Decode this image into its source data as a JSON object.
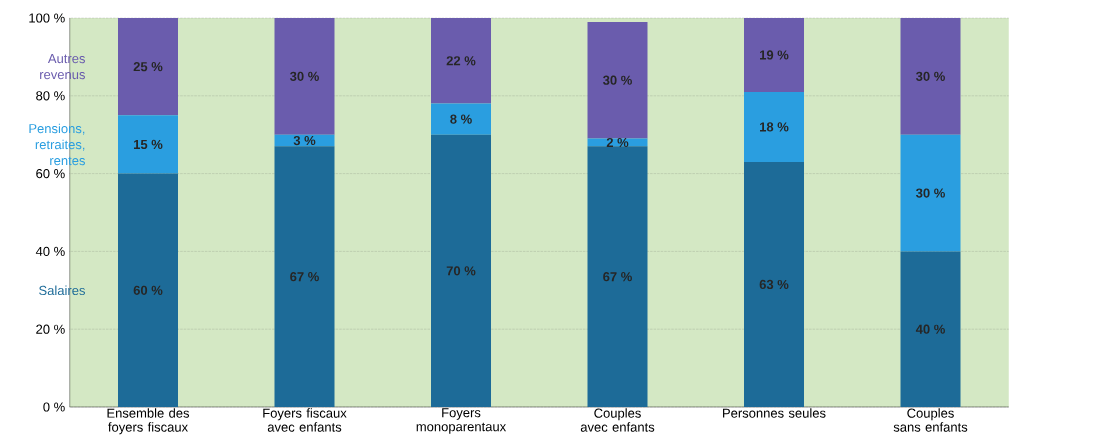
{
  "chart_data": {
    "type": "bar",
    "stacked": true,
    "categories": [
      "Ensemble des foyers fiscaux",
      "Foyers fiscaux avec enfants",
      "Foyers monoparentaux",
      "Couples avec enfants",
      "Personnes seules",
      "Couples sans enfants"
    ],
    "series": [
      {
        "name": "Salaires",
        "color": "#1d6b98",
        "values": [
          60,
          67,
          70,
          67,
          63,
          40
        ],
        "value_labels": [
          "60 %",
          "67 %",
          "70 %",
          "67 %",
          "63 %",
          "40 %"
        ]
      },
      {
        "name": "Pensions, retraites, rentes",
        "color": "#2a9ee0",
        "values": [
          15,
          3,
          8,
          2,
          18,
          30
        ],
        "value_labels": [
          "15 %",
          "3 %",
          "8 %",
          "2 %",
          "18 %",
          "30 %"
        ]
      },
      {
        "name": "Autres revenus",
        "color": "#6a5cad",
        "values": [
          25,
          30,
          22,
          30,
          19,
          30
        ],
        "value_labels": [
          "25 %",
          "30 %",
          "22 %",
          "30 %",
          "19 %",
          "30 %"
        ]
      }
    ],
    "ylim": [
      0,
      100
    ],
    "yticks": [
      {
        "value": 0,
        "label": "0 %"
      },
      {
        "value": 20,
        "label": "20 %"
      },
      {
        "value": 40,
        "label": "40 %"
      },
      {
        "value": 60,
        "label": "60 %"
      },
      {
        "value": 80,
        "label": "80 %"
      },
      {
        "value": 100,
        "label": "100 %"
      }
    ],
    "grid": "y"
  }
}
